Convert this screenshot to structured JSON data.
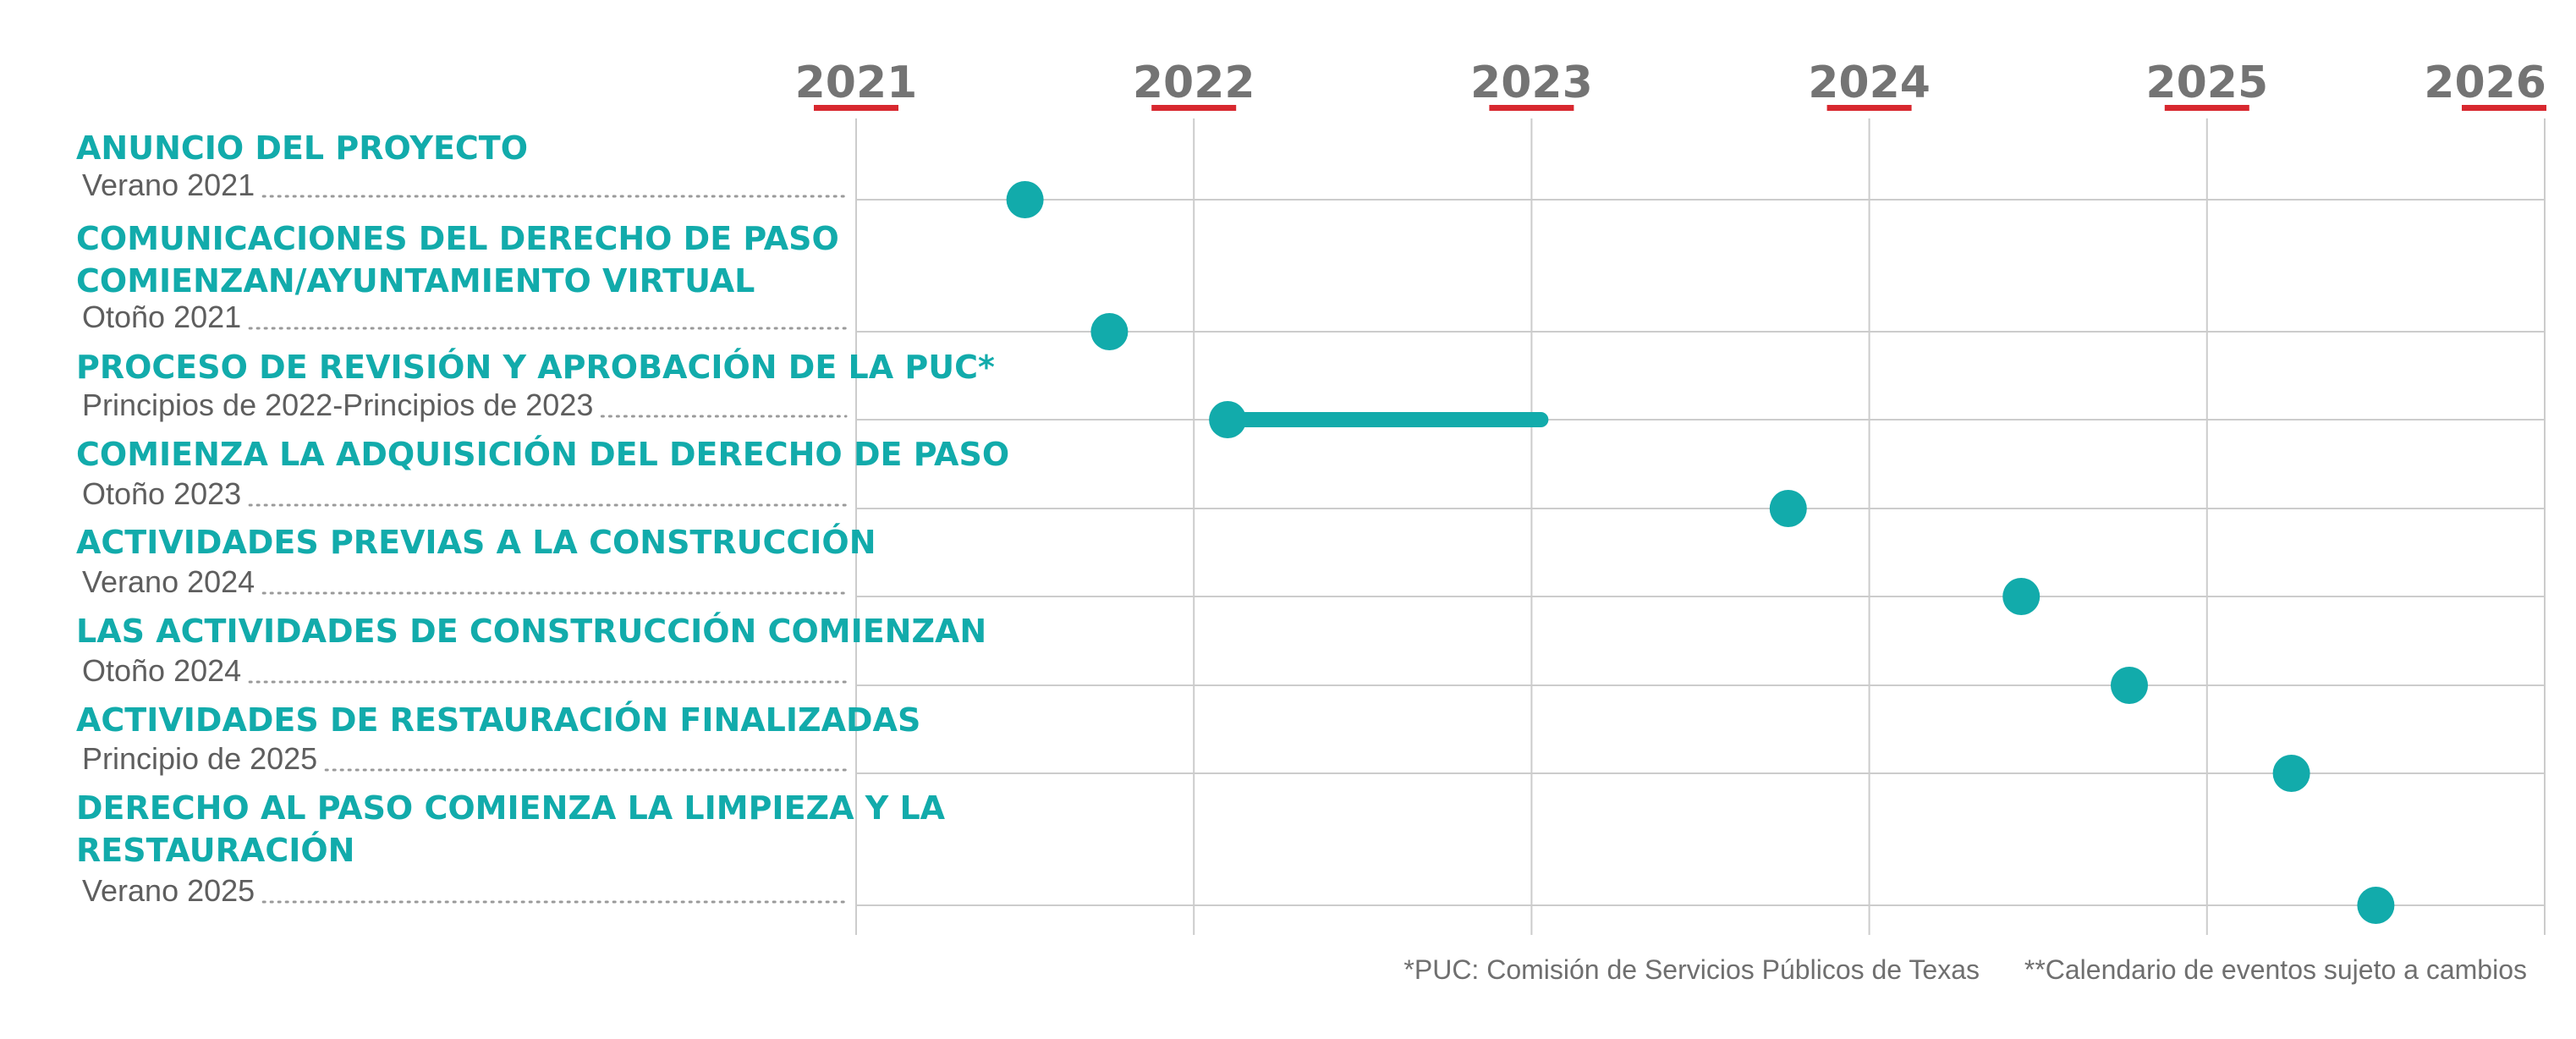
{
  "chart_data": {
    "type": "timeline",
    "years": [
      "2021",
      "2022",
      "2023",
      "2024",
      "2025",
      "2026"
    ],
    "xlim": [
      2021,
      2026
    ],
    "grid": true,
    "milestones": [
      {
        "title": [
          "ANUNCIO DEL PROYECTO"
        ],
        "date_label": "Verano 2021",
        "start": 2021.5
      },
      {
        "title": [
          "COMUNICACIONES DEL DERECHO DE PASO",
          "COMIENZAN/AYUNTAMIENTO VIRTUAL"
        ],
        "date_label": "Otoño 2021",
        "start": 2021.75
      },
      {
        "title": [
          "PROCESO DE REVISIÓN Y APROBACIÓN DE LA PUC*"
        ],
        "date_label": "Principios de 2022-Principios de 2023",
        "start": 2022.1,
        "end": 2023.05
      },
      {
        "title": [
          "COMIENZA LA ADQUISICIÓN DEL DERECHO DE PASO"
        ],
        "date_label": "Otoño 2023",
        "start": 2023.76
      },
      {
        "title": [
          "ACTIVIDADES PREVIAS A LA CONSTRUCCIÓN"
        ],
        "date_label": "Verano 2024",
        "start": 2024.45
      },
      {
        "title": [
          "LAS ACTIVIDADES DE CONSTRUCCIÓN COMIENZAN"
        ],
        "date_label": "Otoño 2024",
        "start": 2024.77
      },
      {
        "title": [
          "ACTIVIDADES DE RESTAURACIÓN FINALIZADAS"
        ],
        "date_label": "Principio de 2025",
        "start": 2025.25
      },
      {
        "title": [
          "DERECHO AL PASO COMIENZA LA LIMPIEZA Y LA",
          "RESTAURACIÓN"
        ],
        "date_label": "Verano 2025",
        "start": 2025.5
      }
    ],
    "footnotes": [
      "*PUC: Comisión de Servicios Públicos de Texas",
      "**Calendario de eventos sujeto a cambios"
    ]
  },
  "colors": {
    "accent": "#12abab",
    "year_underline": "#d8282f",
    "year_text": "#747474",
    "grid": "#cccccc",
    "date_text": "#5e5e5e",
    "dots": "#9a9a9a"
  }
}
